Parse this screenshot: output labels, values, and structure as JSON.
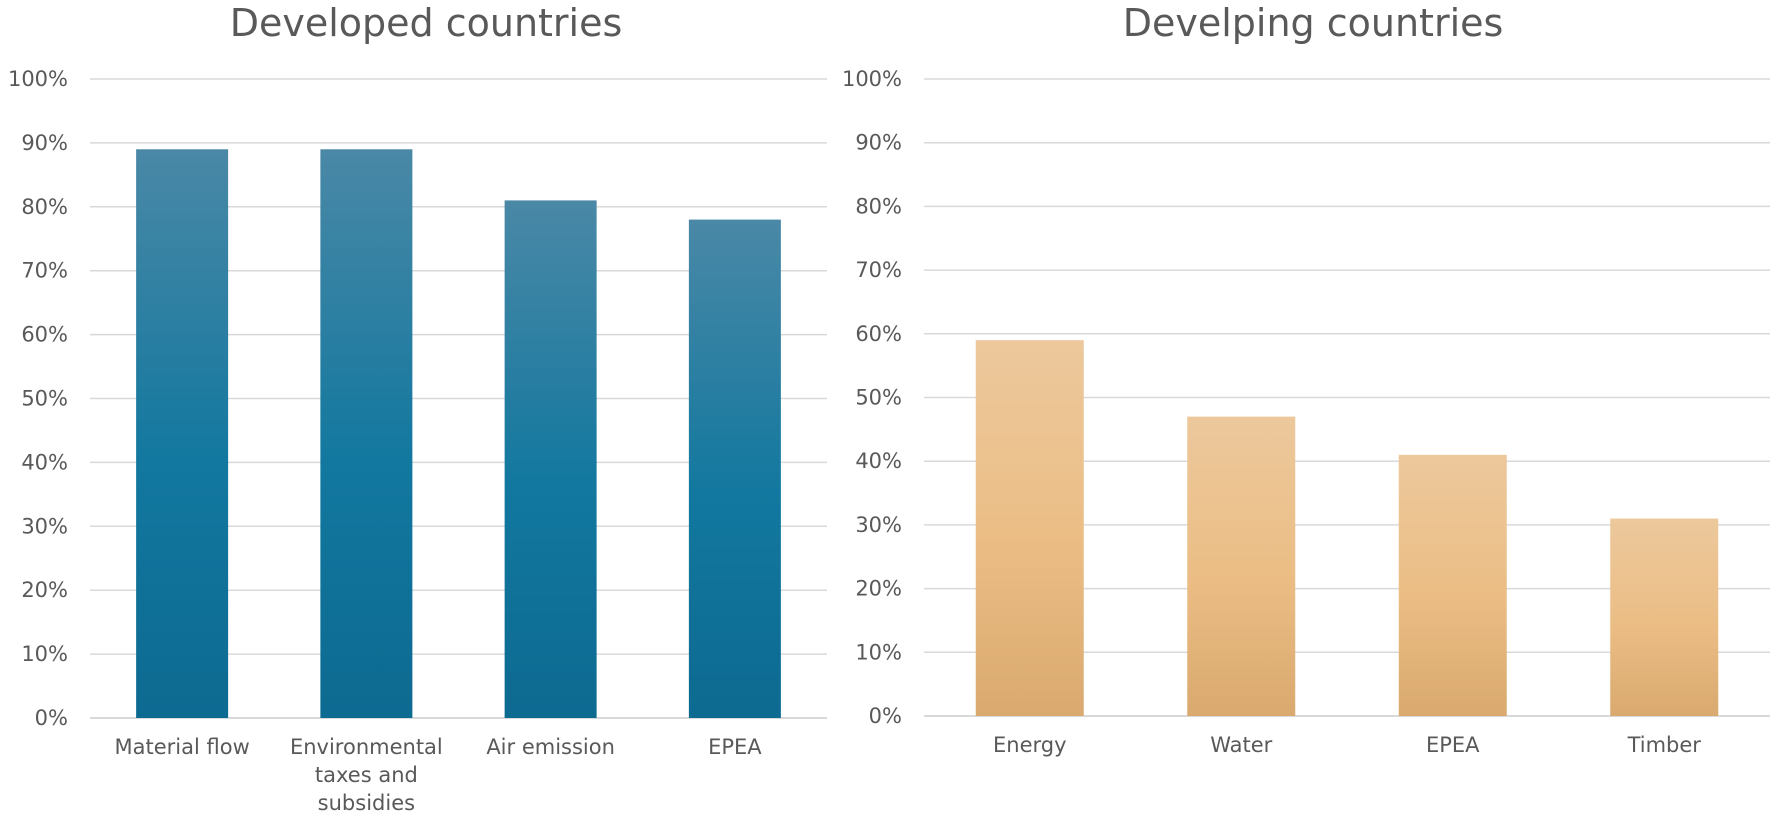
{
  "chart_data": [
    {
      "type": "bar",
      "title": "Developed countries",
      "categories": [
        "Material flow",
        "Environmental taxes and subsidies",
        "Air emission",
        "EPEA"
      ],
      "category_lines": [
        [
          "Material flow"
        ],
        [
          "Environmental",
          "taxes and",
          "subsidies"
        ],
        [
          "Air emission"
        ],
        [
          "EPEA"
        ]
      ],
      "values": [
        89,
        89,
        81,
        78
      ],
      "ylim": [
        0,
        100
      ],
      "yticks": [
        "0%",
        "10%",
        "20%",
        "30%",
        "40%",
        "50%",
        "60%",
        "70%",
        "80%",
        "90%",
        "100%"
      ],
      "grid": true,
      "colors": {
        "bar_top": "#4a88a6",
        "bar_mid": "#12789f",
        "bar_bottom": "#0d6a91"
      }
    },
    {
      "type": "bar",
      "title": "Develping countries",
      "categories": [
        "Energy",
        "Water",
        "EPEA",
        "Timber"
      ],
      "category_lines": [
        [
          "Energy"
        ],
        [
          "Water"
        ],
        [
          "EPEA"
        ],
        [
          "Timber"
        ]
      ],
      "values": [
        59,
        47,
        41,
        31
      ],
      "ylim": [
        0,
        100
      ],
      "yticks": [
        "0%",
        "10%",
        "20%",
        "30%",
        "40%",
        "50%",
        "60%",
        "70%",
        "80%",
        "90%",
        "100%"
      ],
      "grid": true,
      "colors": {
        "bar_top": "#ecc89c",
        "bar_mid": "#ebbd84",
        "bar_bottom": "#d9a96f"
      }
    }
  ]
}
